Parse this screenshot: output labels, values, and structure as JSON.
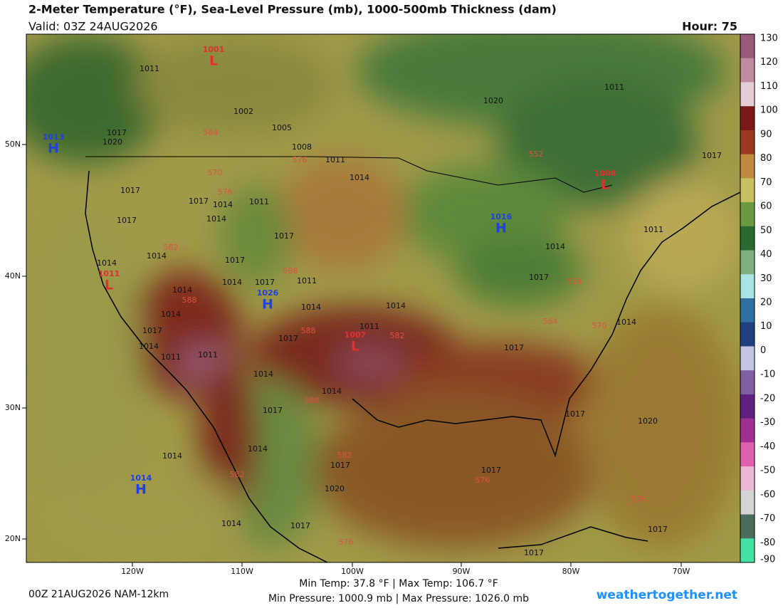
{
  "header": {
    "title": "2-Meter Temperature (°F), Sea-Level Pressure (mb), 1000-500mb Thickness (dam)",
    "valid": "Valid: 03Z 24AUG2026",
    "hour": "Hour: 75"
  },
  "map": {
    "lon_labels": [
      "120W",
      "110W",
      "100W",
      "90W",
      "80W",
      "70W"
    ],
    "lat_labels": [
      "50N",
      "40N",
      "30N",
      "20N"
    ],
    "isobar_labels": [
      "1011",
      "1002",
      "1005",
      "1008",
      "1017",
      "1020",
      "1011",
      "1014",
      "1017",
      "1017",
      "1014",
      "1011",
      "1014",
      "1017",
      "1017",
      "1014",
      "1017",
      "1014",
      "1014",
      "1014",
      "1017",
      "1011",
      "1014",
      "1014",
      "1014",
      "1017",
      "1011",
      "1017",
      "1014",
      "1011",
      "1011",
      "1014",
      "1014",
      "1017",
      "1017",
      "1017",
      "1020",
      "1020",
      "1011",
      "1017",
      "1011",
      "1014",
      "1017",
      "1014",
      "1014",
      "1014",
      "1017",
      "1020",
      "1017",
      "1014",
      "1017",
      "1017",
      "1017"
    ],
    "thickness_labels": [
      "564",
      "576",
      "570",
      "576",
      "582",
      "588",
      "588",
      "588",
      "582",
      "588",
      "552",
      "558",
      "564",
      "570",
      "582",
      "582",
      "576",
      "576",
      "576"
    ],
    "centers": [
      {
        "symbol": "L",
        "value": "1001"
      },
      {
        "symbol": "H",
        "value": "1013"
      },
      {
        "symbol": "L",
        "value": "1008"
      },
      {
        "symbol": "H",
        "value": "1016"
      },
      {
        "symbol": "L",
        "value": "1011"
      },
      {
        "symbol": "H",
        "value": "1026"
      },
      {
        "symbol": "L",
        "value": "1007"
      },
      {
        "symbol": "H",
        "value": "1014"
      }
    ]
  },
  "colorbar": {
    "ticks": [
      130,
      120,
      110,
      100,
      90,
      80,
      70,
      60,
      50,
      40,
      30,
      20,
      10,
      0,
      -10,
      -20,
      -30,
      -40,
      -50,
      -60,
      -70,
      -80,
      -90
    ],
    "colors": [
      "#9a5a7a",
      "#c08aa0",
      "#e4cdd6",
      "#7a1a18",
      "#9a3a20",
      "#c08a40",
      "#c8c060",
      "#6a9a40",
      "#2a6a30",
      "#80b080",
      "#a8e4e4",
      "#3070a0",
      "#204080",
      "#c4c4e4",
      "#8060a0",
      "#602080",
      "#a03090",
      "#e060b0",
      "#e8b8d4",
      "#d4d4d4",
      "#4c6c5c",
      "#44e0a4"
    ]
  },
  "footer": {
    "run": "00Z 21AUG2026 NAM-12km",
    "temps": "Min Temp: 37.8 °F | Max Temp: 106.7 °F",
    "pressures": "Min Pressure: 1000.9 mb | Max Pressure: 1026.0 mb",
    "site": "weathertogether.net"
  }
}
